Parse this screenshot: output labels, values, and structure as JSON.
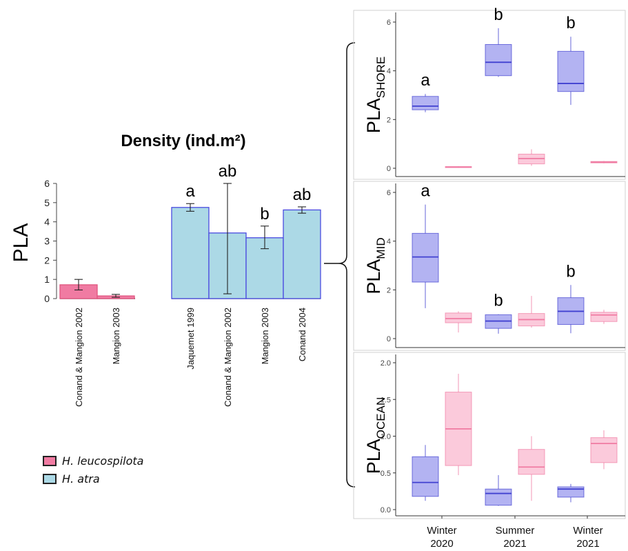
{
  "colors": {
    "leucospilota_fill": "#f07ba2",
    "leucospilota_stroke": "#e0557f",
    "atra_fill": "#acd9e6",
    "atra_stroke": "#4a4ae0",
    "box_blue_fill": "#b3b3f2",
    "box_blue_stroke": "#4040d0",
    "box_pink_fill": "#fbcadb",
    "box_pink_stroke": "#f07ba2"
  },
  "legend": [
    {
      "label": "H. leucospilota",
      "color": "#f07ba2"
    },
    {
      "label": "H. atra",
      "color": "#acd9e6"
    }
  ],
  "chart_data": [
    {
      "type": "bar",
      "title": "Density (ind.m²)",
      "ylabel": "PLA",
      "ylim": [
        0,
        6
      ],
      "yticks": [
        0,
        1,
        2,
        3,
        4,
        5,
        6
      ],
      "groups": [
        {
          "species": "H. leucospilota",
          "categories": [
            "Conand & Mangion 2002",
            "Mangion 2003"
          ],
          "values": [
            0.72,
            0.14
          ],
          "err_low": [
            0.45,
            0.07
          ],
          "err_high": [
            1.0,
            0.22
          ],
          "letters": [
            "",
            ""
          ]
        },
        {
          "species": "H. atra",
          "categories": [
            "Jaquemet 1999",
            "Conand & Mangion 2002",
            "Mangion 2003",
            "Conand 2004"
          ],
          "values": [
            4.75,
            3.42,
            3.17,
            4.62
          ],
          "err_low": [
            4.55,
            0.25,
            2.6,
            4.45
          ],
          "err_high": [
            4.95,
            6.0,
            3.78,
            4.78
          ],
          "letters": [
            "a",
            "ab",
            "b",
            "ab"
          ]
        }
      ]
    },
    {
      "type": "box",
      "ylabel_main": "PLA",
      "ylabel_sub": "SHORE",
      "ylim": [
        0,
        6
      ],
      "yticks": [
        0,
        2,
        4,
        6
      ],
      "categories": [
        "Winter 2020",
        "Summer 2021",
        "Winter 2021"
      ],
      "series": [
        {
          "species": "H. atra",
          "boxes": [
            {
              "min": 2.3,
              "q1": 2.4,
              "median": 2.55,
              "q3": 2.95,
              "max": 3.05
            },
            {
              "min": 3.75,
              "q1": 3.8,
              "median": 4.35,
              "q3": 5.08,
              "max": 5.75
            },
            {
              "min": 2.6,
              "q1": 3.15,
              "median": 3.48,
              "q3": 4.8,
              "max": 5.4
            }
          ]
        },
        {
          "species": "H. leucospilota",
          "boxes": [
            {
              "min": 0.02,
              "q1": 0.03,
              "median": 0.05,
              "q3": 0.07,
              "max": 0.08
            },
            {
              "min": 0.1,
              "q1": 0.18,
              "median": 0.4,
              "q3": 0.58,
              "max": 0.78
            },
            {
              "min": 0.2,
              "q1": 0.22,
              "median": 0.25,
              "q3": 0.28,
              "max": 0.3
            }
          ]
        }
      ],
      "letters": [
        "a",
        "b",
        "b"
      ]
    },
    {
      "type": "box",
      "ylabel_main": "PLA",
      "ylabel_sub": "MID",
      "ylim": [
        0,
        6
      ],
      "yticks": [
        0,
        2,
        4,
        6
      ],
      "categories": [
        "Winter 2020",
        "Summer 2021",
        "Winter 2021"
      ],
      "series": [
        {
          "species": "H. atra",
          "boxes": [
            {
              "min": 1.25,
              "q1": 2.32,
              "median": 3.35,
              "q3": 4.32,
              "max": 5.5
            },
            {
              "min": 0.2,
              "q1": 0.42,
              "median": 0.72,
              "q3": 0.98,
              "max": 1.0
            },
            {
              "min": 0.22,
              "q1": 0.58,
              "median": 1.12,
              "q3": 1.68,
              "max": 2.2
            }
          ]
        },
        {
          "species": "H. leucospilota",
          "boxes": [
            {
              "min": 0.25,
              "q1": 0.65,
              "median": 0.82,
              "q3": 1.05,
              "max": 1.12
            },
            {
              "min": 0.45,
              "q1": 0.52,
              "median": 0.78,
              "q3": 1.03,
              "max": 1.75
            },
            {
              "min": 0.6,
              "q1": 0.7,
              "median": 0.97,
              "q3": 1.08,
              "max": 1.18
            }
          ]
        }
      ],
      "letters": [
        "a",
        "b",
        "b"
      ]
    },
    {
      "type": "box",
      "ylabel_main": "PLA",
      "ylabel_sub": "OCEAN",
      "ylim": [
        0,
        2.0
      ],
      "yticks": [
        0.0,
        0.5,
        1.0,
        1.5,
        2.0
      ],
      "categories": [
        "Winter 2020",
        "Summer 2021",
        "Winter 2021"
      ],
      "series": [
        {
          "species": "H. atra",
          "boxes": [
            {
              "min": 0.12,
              "q1": 0.18,
              "median": 0.37,
              "q3": 0.72,
              "max": 0.88
            },
            {
              "min": 0.05,
              "q1": 0.06,
              "median": 0.22,
              "q3": 0.28,
              "max": 0.47
            },
            {
              "min": 0.1,
              "q1": 0.17,
              "median": 0.28,
              "q3": 0.31,
              "max": 0.35
            }
          ]
        },
        {
          "species": "H. leucospilota",
          "boxes": [
            {
              "min": 0.47,
              "q1": 0.6,
              "median": 1.1,
              "q3": 1.6,
              "max": 1.85
            },
            {
              "min": 0.12,
              "q1": 0.48,
              "median": 0.58,
              "q3": 0.82,
              "max": 1.0
            },
            {
              "min": 0.55,
              "q1": 0.64,
              "median": 0.9,
              "q3": 0.98,
              "max": 1.08
            }
          ]
        }
      ],
      "letters": [
        "",
        "",
        ""
      ]
    }
  ],
  "season_labels": [
    {
      "line1": "Winter",
      "line2": "2020"
    },
    {
      "line1": "Summer",
      "line2": "2021"
    },
    {
      "line1": "Winter",
      "line2": "2021"
    }
  ]
}
